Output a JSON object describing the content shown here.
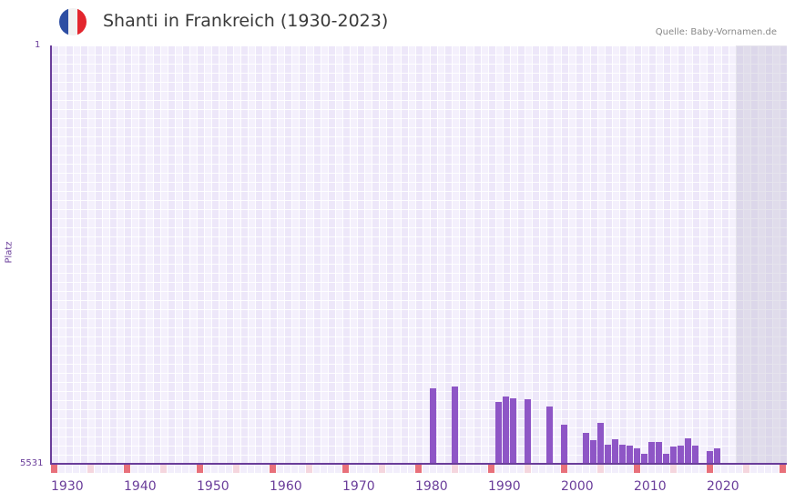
{
  "header": {
    "title": "Shanti in Frankreich (1930-2023)",
    "source": "Quelle: Baby-Vornamen.de",
    "flag_colors": [
      "#2d4ea3",
      "#f2f2f2",
      "#e3262e"
    ]
  },
  "colors": {
    "bar": "#8e56c6",
    "axis": "#6a3d9a",
    "decade_marker": "#e8707a",
    "half_decade_marker": "#f5d6de"
  },
  "chart_data": {
    "type": "bar",
    "title": "Shanti in Frankreich (1930-2023)",
    "xlabel": "",
    "ylabel": "Platz",
    "y_inverted": true,
    "ylim": [
      5531,
      1
    ],
    "xlim": [
      1930,
      2030
    ],
    "grid": true,
    "x_tick_labels": [
      "1930",
      "1940",
      "1950",
      "1960",
      "1970",
      "1980",
      "1990",
      "2000",
      "2010",
      "2020"
    ],
    "y_tick_labels": [
      "1",
      "5531"
    ],
    "categories": [
      1982,
      1985,
      1991,
      1992,
      1993,
      1995,
      1998,
      2000,
      2003,
      2004,
      2005,
      2006,
      2007,
      2008,
      2009,
      2010,
      2011,
      2012,
      2013,
      2014,
      2015,
      2016,
      2017,
      2018,
      2020,
      2021
    ],
    "values": [
      4533,
      4509,
      4714,
      4641,
      4665,
      4677,
      4774,
      5014,
      5122,
      5218,
      4990,
      5279,
      5206,
      5279,
      5291,
      5327,
      5399,
      5242,
      5242,
      5399,
      5303,
      5291,
      5194,
      5291,
      5363,
      5327
    ],
    "annotations": [
      "Shaded region 2024+ (future years)"
    ]
  },
  "axis": {
    "y_top": "1",
    "y_bottom": "5531",
    "y_title": "Platz"
  }
}
